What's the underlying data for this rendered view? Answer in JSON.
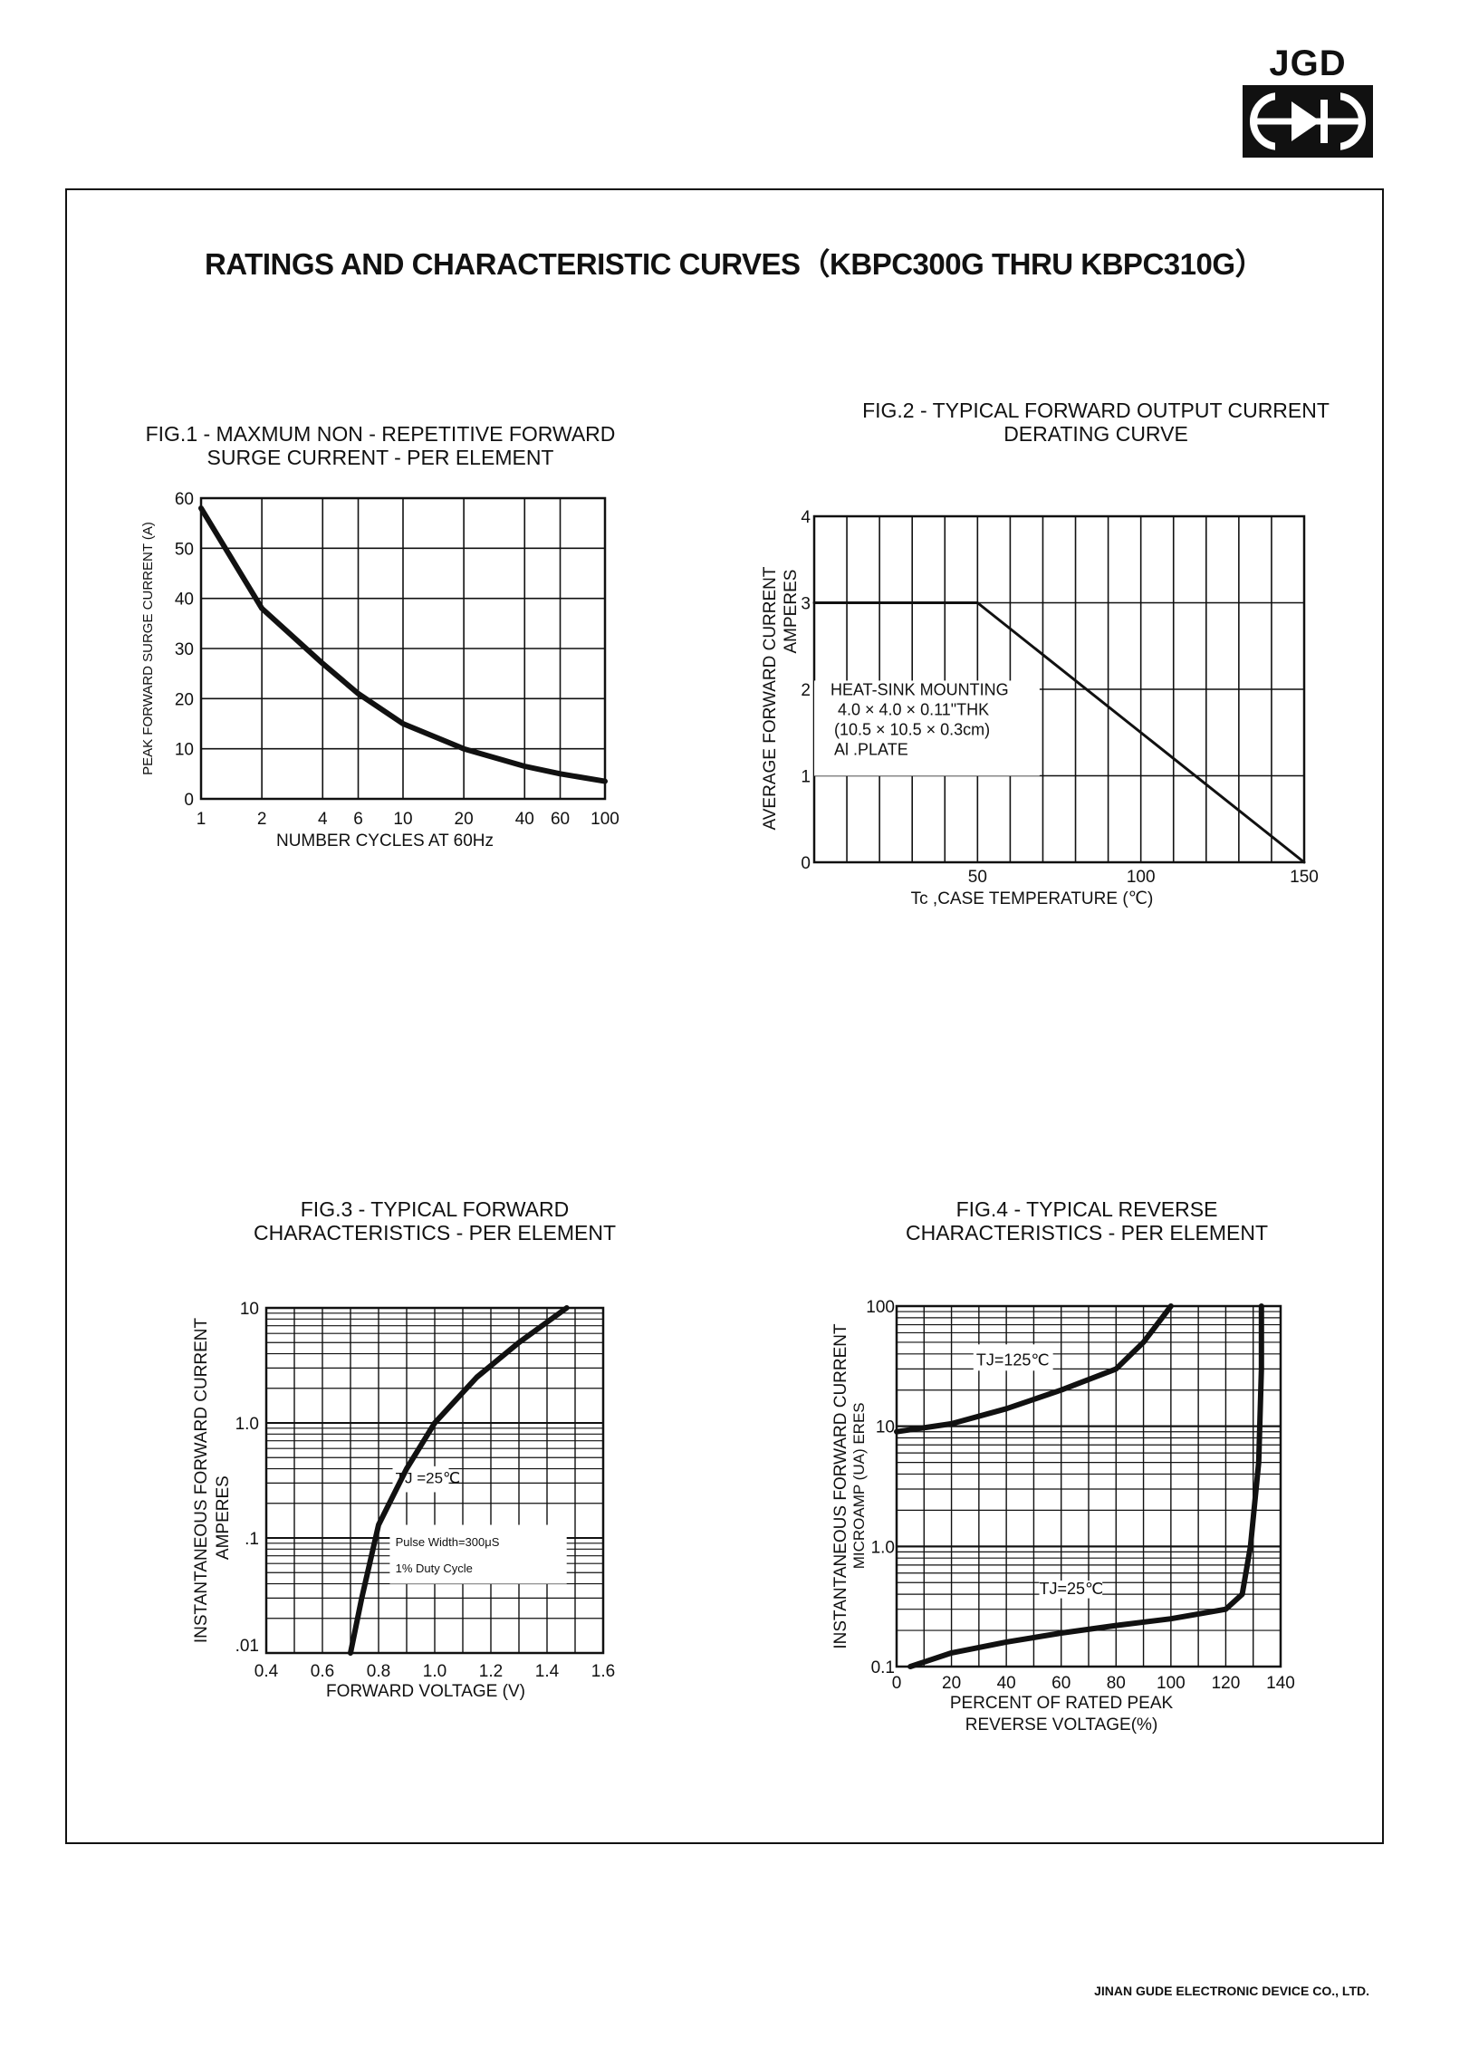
{
  "logo": {
    "text": "JGD"
  },
  "title": "RATINGS AND CHARACTERISTIC CURVES（KBPC300G THRU KBPC310G）",
  "footer": "JINAN GUDE ELECTRONIC DEVICE CO., LTD.",
  "chart_data": [
    {
      "type": "line",
      "title_lines": [
        "FIG.1 - MAXMUM NON - REPETITIVE FORWARD",
        "SURGE CURRENT - PER ELEMENT"
      ],
      "xlabel": "NUMBER CYCLES AT 60Hz",
      "ylabel": "PEAK FORWARD SURGE CURRENT (A)",
      "xscale": "log",
      "xlim": [
        1,
        100
      ],
      "ylim": [
        0,
        60
      ],
      "xticks": [
        1,
        2,
        4,
        6,
        10,
        20,
        40,
        60,
        100
      ],
      "yticks": [
        0,
        10,
        20,
        30,
        40,
        50,
        60
      ],
      "grid": true,
      "series": [
        {
          "x": [
            1,
            2,
            4,
            6,
            10,
            20,
            40,
            60,
            100
          ],
          "y": [
            58,
            38,
            27,
            21,
            15,
            10,
            6.5,
            5,
            3.5
          ]
        }
      ]
    },
    {
      "type": "line",
      "title_lines": [
        "FIG.2 - TYPICAL FORWARD OUTPUT CURRENT",
        "DERATING CURVE"
      ],
      "xlabel": "Tc ,CASE TEMPERATURE (℃)",
      "ylabel_lines": [
        "AVERAGE FORWARD CURRENT",
        "AMPERES"
      ],
      "xlim": [
        0,
        150
      ],
      "ylim": [
        0,
        4
      ],
      "xticks": [
        50,
        100,
        150
      ],
      "yticks": [
        0,
        1,
        2,
        3,
        4
      ],
      "grid": true,
      "annotation": [
        "HEAT-SINK MOUNTING",
        "4.0 × 4.0 × 0.11\"THK",
        "(10.5 × 10.5 × 0.3cm)",
        "Al .PLATE"
      ],
      "series": [
        {
          "x": [
            0,
            50,
            150
          ],
          "y": [
            3,
            3,
            0
          ]
        }
      ]
    },
    {
      "type": "line",
      "title_lines": [
        "FIG.3 - TYPICAL FORWARD",
        "CHARACTERISTICS - PER ELEMENT"
      ],
      "xlabel": "FORWARD VOLTAGE (V)",
      "ylabel_lines": [
        "INSTANTANEOUS FORWARD CURRENT",
        "AMPERES"
      ],
      "yscale": "log",
      "xlim": [
        0.4,
        1.6
      ],
      "ylim": [
        0.01,
        10
      ],
      "xticks": [
        "0.4",
        "0.6",
        "0.8",
        "1.0",
        "1.2",
        "1.4",
        "1.6"
      ],
      "yticks": [
        ".01",
        ".1",
        "1.0",
        "10"
      ],
      "grid": true,
      "annotations": [
        "TJ =25℃",
        "Pulse Width=300μS",
        "1% Duty Cycle"
      ],
      "series": [
        {
          "x": [
            0.7,
            0.74,
            0.8,
            0.9,
            1.0,
            1.15,
            1.3,
            1.47
          ],
          "y": [
            0.01,
            0.03,
            0.13,
            0.4,
            1.0,
            2.5,
            5,
            10
          ]
        }
      ]
    },
    {
      "type": "line",
      "title_lines": [
        "FIG.4 - TYPICAL REVERSE",
        "CHARACTERISTICS - PER ELEMENT"
      ],
      "xlabel_lines": [
        "PERCENT OF RATED PEAK",
        "REVERSE VOLTAGE(%)"
      ],
      "ylabel_lines": [
        "INSTANTANEOUS FORWARD CURRENT",
        "MICROAMP (UA) ERES"
      ],
      "yscale": "log",
      "xlim": [
        0,
        140
      ],
      "ylim": [
        0.1,
        100
      ],
      "xticks": [
        0,
        20,
        40,
        60,
        80,
        100,
        120,
        140
      ],
      "yticks": [
        "0.1",
        "1.0",
        "10",
        "100"
      ],
      "grid": true,
      "series": [
        {
          "name": "TJ=125℃",
          "x": [
            0,
            20,
            40,
            60,
            80,
            90,
            100
          ],
          "y": [
            9,
            10.5,
            14,
            20,
            30,
            50,
            100
          ]
        },
        {
          "name": "TJ=25℃",
          "x": [
            5,
            20,
            40,
            60,
            80,
            100,
            120,
            126,
            129,
            132,
            133,
            133
          ],
          "y": [
            0.1,
            0.13,
            0.16,
            0.19,
            0.22,
            0.25,
            0.3,
            0.4,
            1.0,
            5,
            30,
            100
          ]
        }
      ]
    }
  ]
}
